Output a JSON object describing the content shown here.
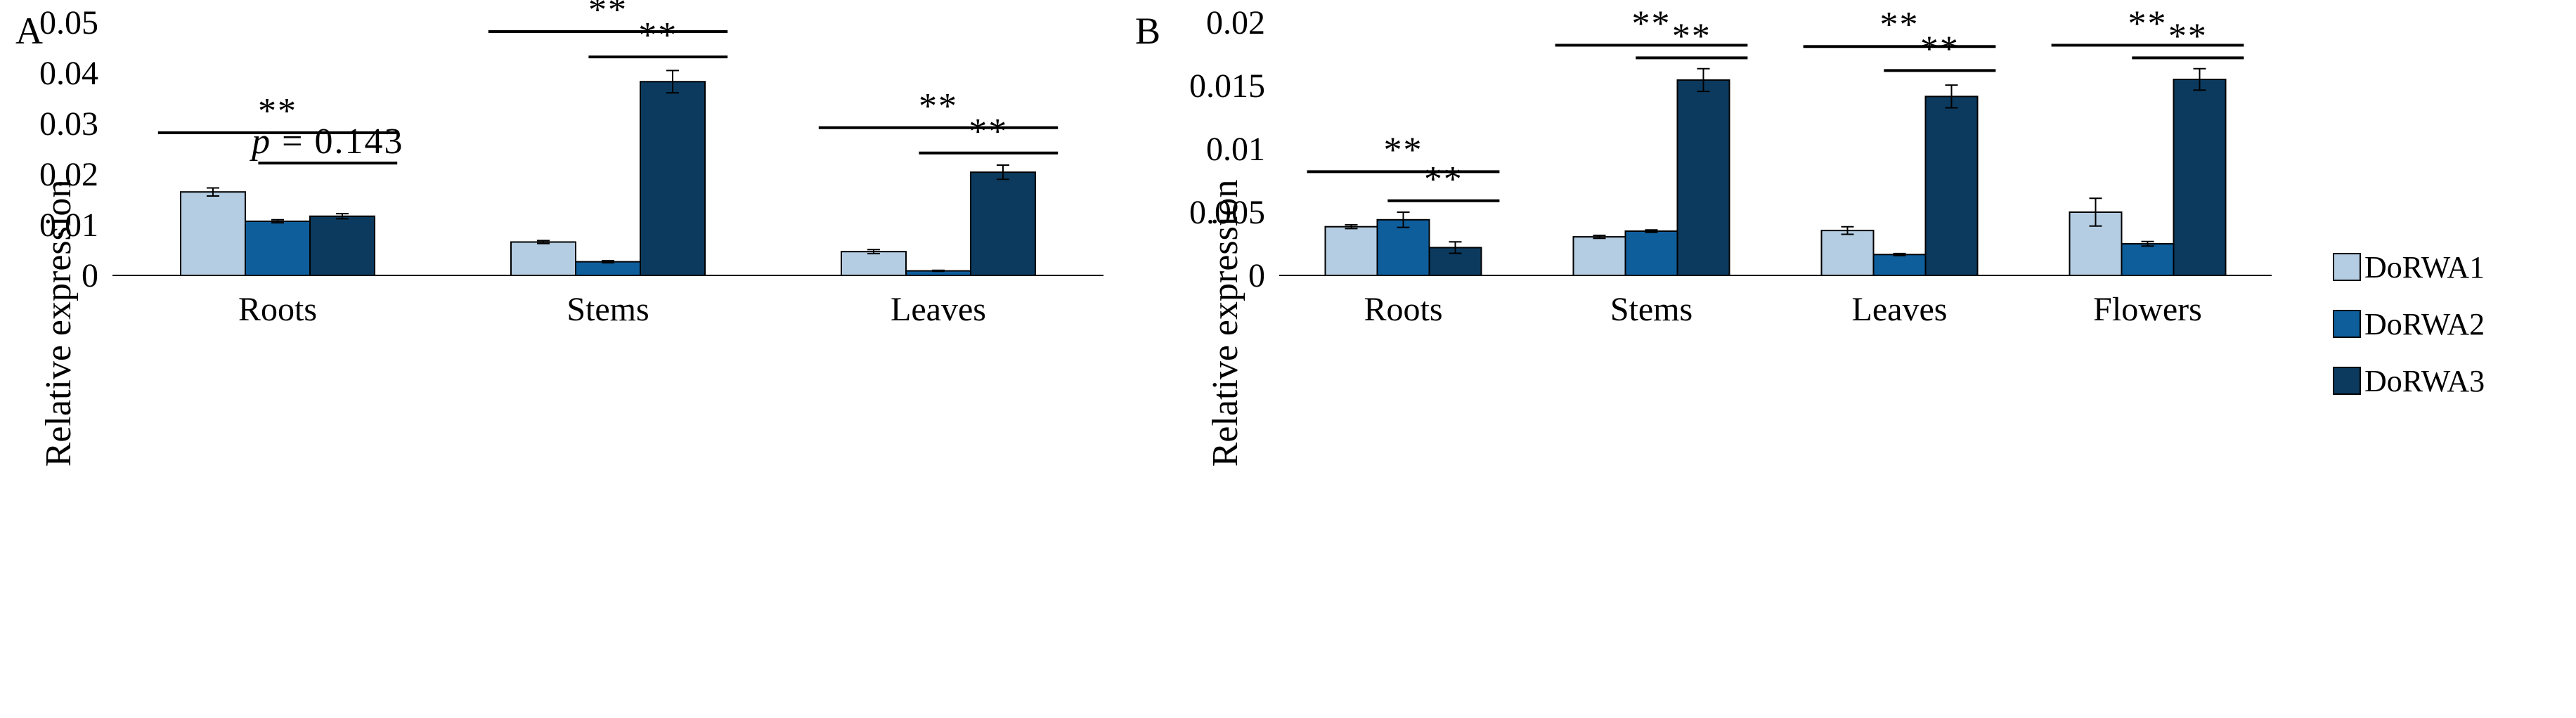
{
  "figure": {
    "legend": [
      {
        "name": "DoRWA1",
        "color": "#b4cde3"
      },
      {
        "name": "DoRWA2",
        "color": "#0f5e9c"
      },
      {
        "name": "DoRWA3",
        "color": "#0c3a5e"
      }
    ]
  },
  "chart_data": [
    {
      "panel": "A",
      "type": "bar",
      "ylabel": "Relative expression",
      "ylim": [
        0,
        0.05
      ],
      "yticks": [
        "0",
        "0.01",
        "0.02",
        "0.03",
        "0.04",
        "0.05"
      ],
      "categories": [
        "Roots",
        "Stems",
        "Leaves"
      ],
      "series": [
        {
          "name": "DoRWA1",
          "color": "#b4cde3",
          "values": [
            0.0165,
            0.0066,
            0.0047
          ],
          "errors": [
            0.0008,
            0.0003,
            0.0004
          ]
        },
        {
          "name": "DoRWA2",
          "color": "#0f5e9c",
          "values": [
            0.0107,
            0.0027,
            0.0009
          ],
          "errors": [
            0.0003,
            0.0002,
            0.0001
          ]
        },
        {
          "name": "DoRWA3",
          "color": "#0c3a5e",
          "values": [
            0.0117,
            0.0383,
            0.0204
          ],
          "errors": [
            0.0005,
            0.0022,
            0.0014
          ]
        }
      ],
      "annotations": [
        {
          "category": "Roots",
          "from_series": 0,
          "to_series": 2,
          "text": "**",
          "y": 0.0282
        },
        {
          "category": "Roots",
          "from_series": 1,
          "to_series": 2,
          "text_prefix": "p",
          "text": "= 0.143",
          "y": 0.0222
        },
        {
          "category": "Stems",
          "from_series": 0,
          "to_series": 2,
          "text": "**",
          "y": 0.0482
        },
        {
          "category": "Stems",
          "from_series": 1,
          "to_series": 2,
          "text": "**",
          "y": 0.0432
        },
        {
          "category": "Leaves",
          "from_series": 0,
          "to_series": 2,
          "text": "**",
          "y": 0.0292
        },
        {
          "category": "Leaves",
          "from_series": 1,
          "to_series": 2,
          "text": "**",
          "y": 0.0242
        }
      ]
    },
    {
      "panel": "B",
      "type": "bar",
      "ylabel": "Relative expression",
      "ylim": [
        0,
        0.02
      ],
      "yticks": [
        "0",
        "0.005",
        "0.01",
        "0.015",
        "0.02"
      ],
      "categories": [
        "Roots",
        "Stems",
        "Leaves",
        "Flowers"
      ],
      "series": [
        {
          "name": "DoRWA1",
          "color": "#b4cde3",
          "values": [
            0.00385,
            0.00305,
            0.00355,
            0.005
          ],
          "errors": [
            0.00015,
            0.00012,
            0.0003,
            0.0011
          ]
        },
        {
          "name": "DoRWA2",
          "color": "#0f5e9c",
          "values": [
            0.0044,
            0.0035,
            0.00165,
            0.0025
          ],
          "errors": [
            0.0006,
            0.0001,
            8e-05,
            0.00018
          ]
        },
        {
          "name": "DoRWA3",
          "color": "#0c3a5e",
          "values": [
            0.0022,
            0.01545,
            0.01415,
            0.0155
          ],
          "errors": [
            0.00045,
            0.0009,
            0.0009,
            0.00085
          ]
        }
      ],
      "annotations": [
        {
          "category": "Roots",
          "from_series": 0,
          "to_series": 2,
          "text": "**",
          "y": 0.0082
        },
        {
          "category": "Roots",
          "from_series": 1,
          "to_series": 2,
          "text": "**",
          "y": 0.0059
        },
        {
          "category": "Stems",
          "from_series": 0,
          "to_series": 2,
          "text": "**",
          "y": 0.0182
        },
        {
          "category": "Stems",
          "from_series": 1,
          "to_series": 2,
          "text": "**",
          "y": 0.0172
        },
        {
          "category": "Leaves",
          "from_series": 0,
          "to_series": 2,
          "text": "**",
          "y": 0.0181
        },
        {
          "category": "Leaves",
          "from_series": 1,
          "to_series": 2,
          "text": "**",
          "y": 0.0162
        },
        {
          "category": "Flowers",
          "from_series": 0,
          "to_series": 2,
          "text": "**",
          "y": 0.0182
        },
        {
          "category": "Flowers",
          "from_series": 1,
          "to_series": 2,
          "text": "**",
          "y": 0.0172
        }
      ]
    }
  ]
}
